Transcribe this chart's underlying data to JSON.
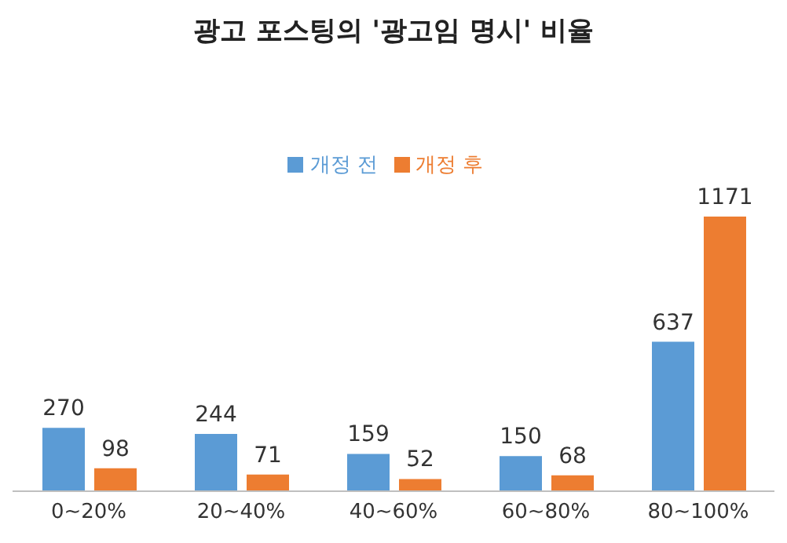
{
  "chart_data": {
    "type": "bar",
    "title": "광고 포스팅의 '광고임 명시' 비율",
    "categories": [
      "0~20%",
      "20~40%",
      "40~60%",
      "60~80%",
      "80~100%"
    ],
    "series": [
      {
        "name": "개정 전",
        "color": "#5b9bd5",
        "values": [
          270,
          244,
          159,
          150,
          637
        ]
      },
      {
        "name": "개정 후",
        "color": "#ed7d31",
        "values": [
          98,
          71,
          52,
          68,
          1171
        ]
      }
    ],
    "data_labels": true,
    "legend": "top",
    "grid": false
  }
}
